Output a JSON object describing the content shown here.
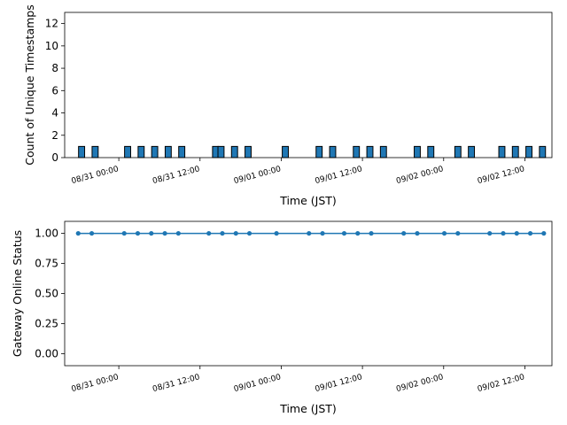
{
  "chart_data": [
    {
      "type": "bar",
      "xlabel": "Time (JST)",
      "ylabel": "Count of Unique Timestamps",
      "x_ticks": [
        "08/31 00:00",
        "08/31 12:00",
        "09/01 00:00",
        "09/01 12:00",
        "09/02 00:00",
        "09/02 12:00"
      ],
      "x_tick_hours": [
        0,
        12,
        24,
        36,
        48,
        60
      ],
      "xlim_hours": [
        -8,
        64
      ],
      "y_ticks": [
        0,
        2,
        4,
        6,
        8,
        10,
        12
      ],
      "ylim": [
        0,
        13
      ],
      "bar_width_hours": 1,
      "bar_color": "#1f77b4",
      "bars_hours": [
        -5.5,
        -3.5,
        1.3,
        3.3,
        5.3,
        7.3,
        9.3,
        14.3,
        15.1,
        17.1,
        19.1,
        24.6,
        29.6,
        31.6,
        35.1,
        37.1,
        39.1,
        44.1,
        46.1,
        50.1,
        52.1,
        56.6,
        58.6,
        60.6,
        62.6
      ],
      "values": [
        1,
        1,
        1,
        1,
        1,
        1,
        1,
        1,
        1,
        1,
        1,
        1,
        1,
        1,
        1,
        1,
        1,
        1,
        1,
        1,
        1,
        1,
        1,
        1,
        1
      ]
    },
    {
      "type": "line",
      "xlabel": "Time (JST)",
      "ylabel": "Gateway Online Status",
      "x_ticks": [
        "08/31 00:00",
        "08/31 12:00",
        "09/01 00:00",
        "09/01 12:00",
        "09/02 00:00",
        "09/02 12:00"
      ],
      "x_tick_hours": [
        0,
        12,
        24,
        36,
        48,
        60
      ],
      "xlim_hours": [
        -8,
        64
      ],
      "y_ticks": [
        "0.00",
        "0.25",
        "0.50",
        "0.75",
        "1.00"
      ],
      "y_tick_values": [
        0,
        0.25,
        0.5,
        0.75,
        1.0
      ],
      "ylim": [
        -0.1,
        1.1
      ],
      "line_color": "#1f77b4",
      "x_hours": [
        -6,
        -4,
        0.8,
        2.8,
        4.8,
        6.8,
        8.8,
        13.3,
        15.3,
        17.3,
        19.3,
        23.3,
        28.1,
        30.1,
        33.3,
        35.3,
        37.3,
        42.1,
        44.1,
        48.1,
        50.1,
        54.8,
        56.8,
        58.8,
        60.8,
        62.8
      ],
      "values": [
        1,
        1,
        1,
        1,
        1,
        1,
        1,
        1,
        1,
        1,
        1,
        1,
        1,
        1,
        1,
        1,
        1,
        1,
        1,
        1,
        1,
        1,
        1,
        1,
        1,
        1
      ]
    }
  ]
}
